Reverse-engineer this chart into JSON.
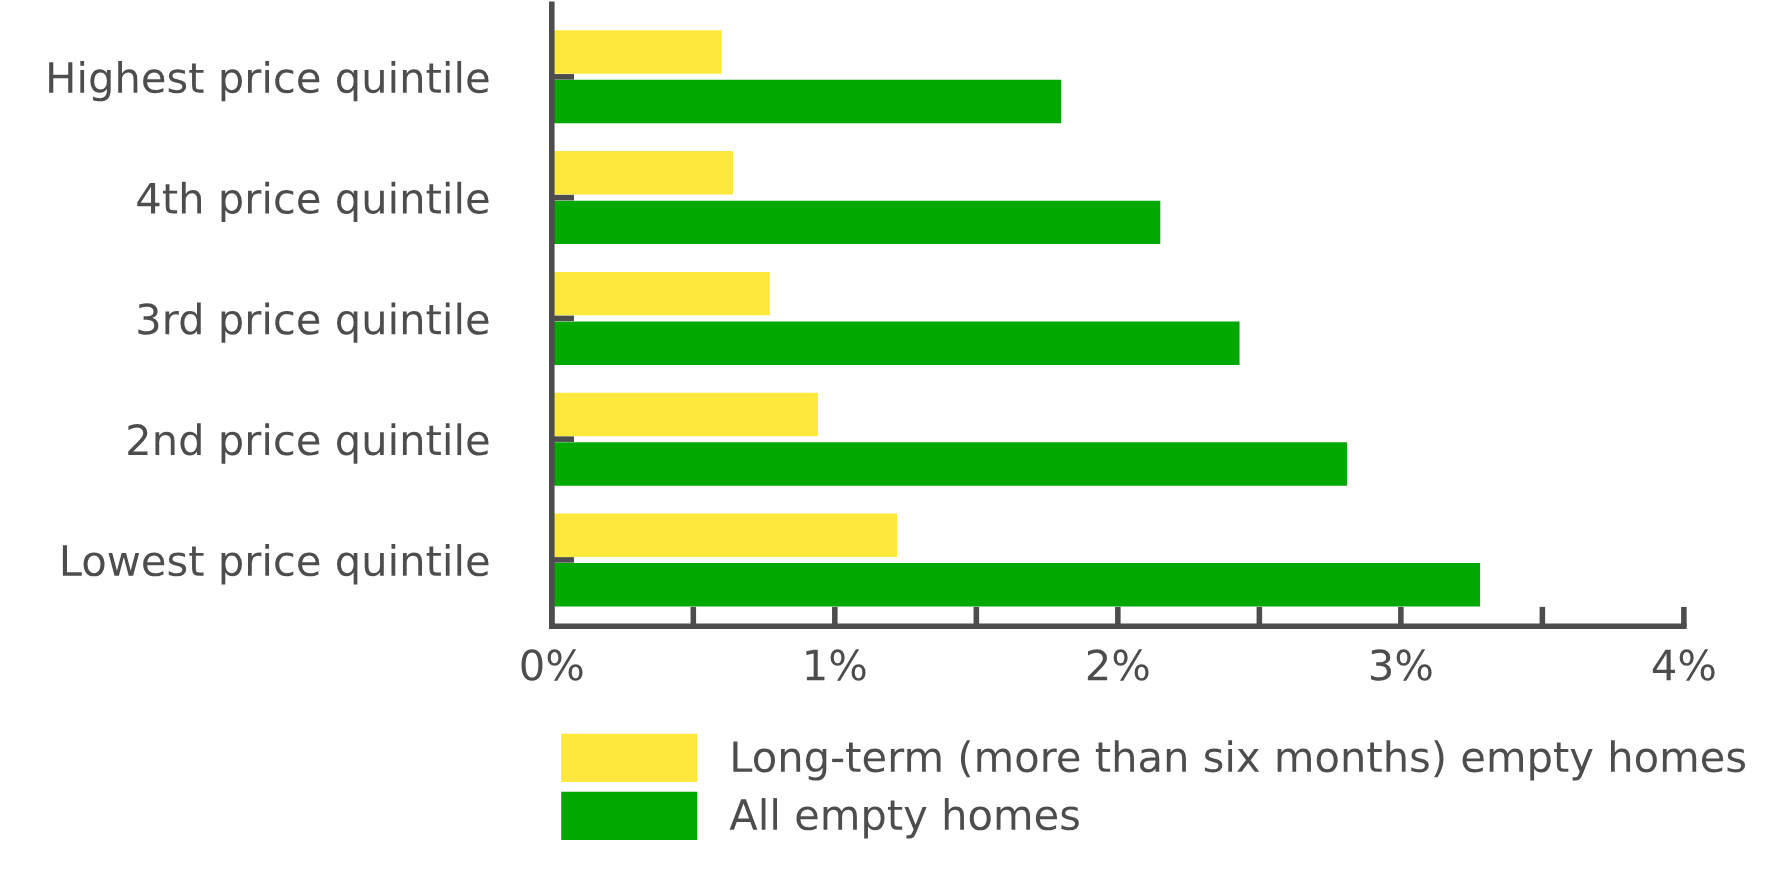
{
  "chart_data": {
    "type": "bar",
    "orientation": "horizontal",
    "categories": [
      "Highest price quintile",
      "4th price quintile",
      "3rd price quintile",
      "2nd price quintile",
      "Lowest price quintile"
    ],
    "series": [
      {
        "name": "Long-term (more than six months) empty homes",
        "color": "#ffe83c",
        "values": [
          0.6,
          0.64,
          0.77,
          0.94,
          1.22
        ]
      },
      {
        "name": "All empty homes",
        "color": "#00a800",
        "values": [
          1.8,
          2.15,
          2.43,
          2.81,
          3.28
        ]
      }
    ],
    "xlim": [
      0,
      4
    ],
    "xticks": [
      {
        "value": 0,
        "label": "0%"
      },
      {
        "value": 0.5,
        "label": null
      },
      {
        "value": 1,
        "label": "1%"
      },
      {
        "value": 1.5,
        "label": null
      },
      {
        "value": 2,
        "label": "2%"
      },
      {
        "value": 2.5,
        "label": null
      },
      {
        "value": 3,
        "label": "3%"
      },
      {
        "value": 3.5,
        "label": null
      },
      {
        "value": 4,
        "label": "4%"
      }
    ],
    "grid": false,
    "legend": "bottom"
  }
}
